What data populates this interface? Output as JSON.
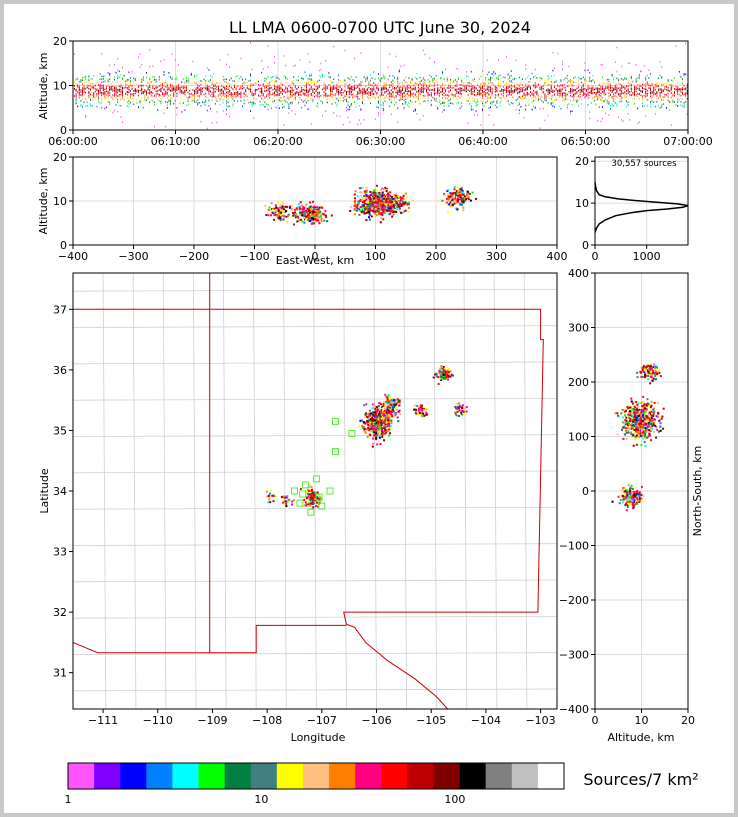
{
  "chart_data": [
    {
      "panel": "altitude-time",
      "type": "scatter",
      "title": "LL LMA 0600-0700 UTC June 30, 2024",
      "ylabel": "Altitude, km",
      "xlim": [
        "06:00:00",
        "07:00:00"
      ],
      "ylim": [
        0,
        20
      ],
      "xticks": [
        "06:00:00",
        "06:10:00",
        "06:20:00",
        "06:30:00",
        "06:40:00",
        "06:50:00",
        "07:00:00"
      ],
      "yticks": [
        "0",
        "10",
        "20"
      ],
      "grid": true,
      "band_center_altitude_km": 9
    },
    {
      "panel": "east-west-altitude",
      "type": "scatter",
      "xlabel": "East-West, km",
      "ylabel": "Altitude, km",
      "xlim": [
        -400,
        400
      ],
      "ylim": [
        0,
        20
      ],
      "xticks": [
        "−400",
        "−300",
        "−200",
        "−100",
        "0",
        "100",
        "200",
        "300",
        "400"
      ],
      "yticks": [
        "0",
        "10",
        "20"
      ],
      "clusters": [
        {
          "x": -60,
          "y": 8,
          "count": 40
        },
        {
          "x": -15,
          "y": 7.5,
          "count": 60
        },
        {
          "x": 0,
          "y": 7,
          "count": 40
        },
        {
          "x": 95,
          "y": 9.5,
          "count": 160
        },
        {
          "x": 115,
          "y": 10,
          "count": 120
        },
        {
          "x": 140,
          "y": 10,
          "count": 30
        },
        {
          "x": 235,
          "y": 11,
          "count": 70
        }
      ]
    },
    {
      "panel": "altitude-histogram",
      "type": "line",
      "annotation": "30,557 sources",
      "xlim": [
        0,
        1800
      ],
      "ylim": [
        0,
        21
      ],
      "xticks": [
        "0",
        "1000"
      ],
      "yticks": [
        "0",
        "10",
        "20"
      ],
      "x": [
        0,
        30,
        80,
        200,
        400,
        700,
        1000,
        1400,
        1700,
        1800,
        1600,
        1200,
        800,
        450,
        200,
        80,
        30,
        10,
        0
      ],
      "y": [
        3,
        4,
        5,
        6,
        7,
        7.7,
        8.2,
        8.6,
        9,
        9.4,
        9.8,
        10.2,
        10.6,
        11,
        11.5,
        12,
        13,
        14,
        15
      ]
    },
    {
      "panel": "plan-view",
      "type": "scatter",
      "xlabel": "Longitude",
      "ylabel": "Latitude",
      "xlim": [
        -111.55,
        -102.7
      ],
      "ylim": [
        30.4,
        37.6
      ],
      "xticks": [
        "−111",
        "−110",
        "−109",
        "−108",
        "−107",
        "−106",
        "−105",
        "−104",
        "−103"
      ],
      "yticks": [
        "31",
        "32",
        "33",
        "34",
        "35",
        "36",
        "37"
      ],
      "clusters": [
        {
          "lon": -106.0,
          "lat": 35.15,
          "count": 200
        },
        {
          "lon": -105.75,
          "lat": 35.4,
          "count": 60
        },
        {
          "lon": -104.8,
          "lat": 35.95,
          "count": 50
        },
        {
          "lon": -105.2,
          "lat": 35.35,
          "count": 20
        },
        {
          "lon": -104.5,
          "lat": 35.35,
          "count": 15
        },
        {
          "lon": -107.2,
          "lat": 33.9,
          "count": 60
        },
        {
          "lon": -107.7,
          "lat": 33.85,
          "count": 10
        },
        {
          "lon": -107.95,
          "lat": 33.95,
          "count": 8
        }
      ],
      "stations": [
        {
          "lon": -107.3,
          "lat": 34.1
        },
        {
          "lon": -107.4,
          "lat": 33.8
        },
        {
          "lon": -107.1,
          "lat": 34.2
        },
        {
          "lon": -107.0,
          "lat": 33.75
        },
        {
          "lon": -107.2,
          "lat": 33.65
        },
        {
          "lon": -106.85,
          "lat": 34.0
        },
        {
          "lon": -107.5,
          "lat": 34.0
        },
        {
          "lon": -107.35,
          "lat": 33.95
        },
        {
          "lon": -107.05,
          "lat": 33.9
        },
        {
          "lon": -106.75,
          "lat": 35.15
        },
        {
          "lon": -106.45,
          "lat": 34.95
        },
        {
          "lon": -106.75,
          "lat": 34.65
        }
      ]
    },
    {
      "panel": "north-south-altitude",
      "type": "scatter",
      "xlabel": "Altitude, km",
      "ylabel": "North-South, km",
      "xlim": [
        0,
        20
      ],
      "ylim": [
        -400,
        400
      ],
      "xticks": [
        "0",
        "10",
        "20"
      ],
      "yticks": [
        "−400",
        "−300",
        "−200",
        "−100",
        "0",
        "100",
        "200",
        "300",
        "400"
      ],
      "clusters": [
        {
          "x": 9.5,
          "y": 130,
          "count": 220
        },
        {
          "x": 11.5,
          "y": 220,
          "count": 50
        },
        {
          "x": 7.5,
          "y": -10,
          "count": 80
        }
      ]
    }
  ],
  "colorbar": {
    "label": "Sources/7 km²",
    "tick_labels": [
      "1",
      "10",
      "100"
    ],
    "colors": [
      "#ff55ff",
      "#8000ff",
      "#0000ff",
      "#0080ff",
      "#00ffff",
      "#00ff00",
      "#008040",
      "#408080",
      "#ffff00",
      "#ffc080",
      "#ff8000",
      "#ff0080",
      "#ff0000",
      "#c00000",
      "#800000",
      "#000000",
      "#808080",
      "#c0c0c0",
      "#ffffff"
    ]
  }
}
